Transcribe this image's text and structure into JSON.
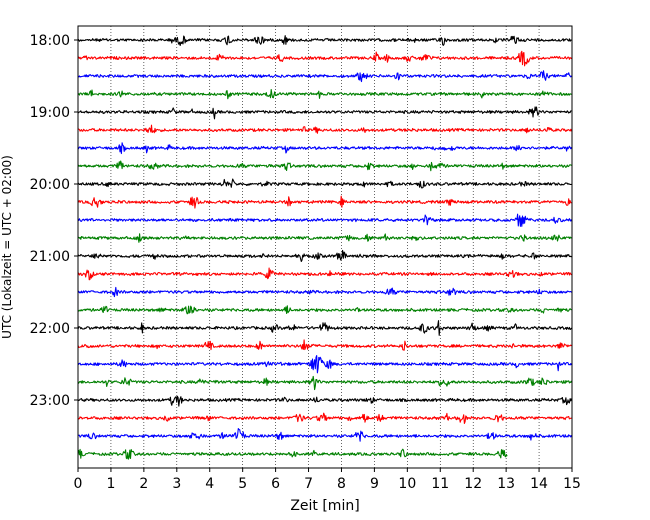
{
  "chart_data": {
    "type": "line",
    "xlabel": "Zeit  [min]",
    "ylabel": "UTC (Lokalzeit = UTC + 02:00)",
    "xlim": [
      0,
      15
    ],
    "x_ticks": [
      0,
      1,
      2,
      3,
      4,
      5,
      6,
      7,
      8,
      9,
      10,
      11,
      12,
      13,
      14,
      15
    ],
    "y_tick_labels": [
      "18:00",
      "19:00",
      "20:00",
      "21:00",
      "22:00",
      "23:00"
    ],
    "grid": "vertical dotted lines at each minute",
    "trace_start": "18:00",
    "trace_interval_min": 15,
    "trace_colors": [
      "#000000",
      "#ff0000",
      "#0000ff",
      "#008000"
    ],
    "trace_count": 24,
    "last_trace_end_min": 13.05
  }
}
